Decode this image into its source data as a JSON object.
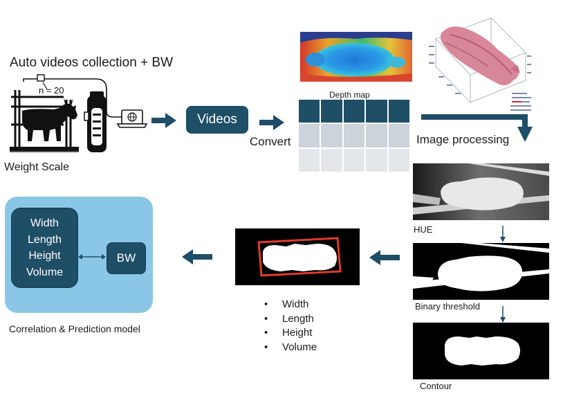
{
  "collection": {
    "title": "Auto videos collection + BW",
    "n_label": "n = 20",
    "scale_label": "Weight Scale"
  },
  "videos_label": "Videos",
  "convert_label": "Convert",
  "depth_map_label": "Depth map",
  "image_processing_label": "Image processing",
  "steps": {
    "hue": "HUE",
    "binary": "Binary threshold",
    "contour": "Contour"
  },
  "features": [
    "Width",
    "Length",
    "Height",
    "Volume"
  ],
  "model": {
    "features": [
      "Width",
      "Length",
      "Height",
      "Volume"
    ],
    "target": "BW",
    "caption": "Correlation & Prediction model"
  },
  "colors": {
    "dark_blue": "#1f4e67",
    "light_blue_panel": "#8ac7e6",
    "grid_light": "#cdd3da",
    "bbox_red": "#e03a2a"
  }
}
